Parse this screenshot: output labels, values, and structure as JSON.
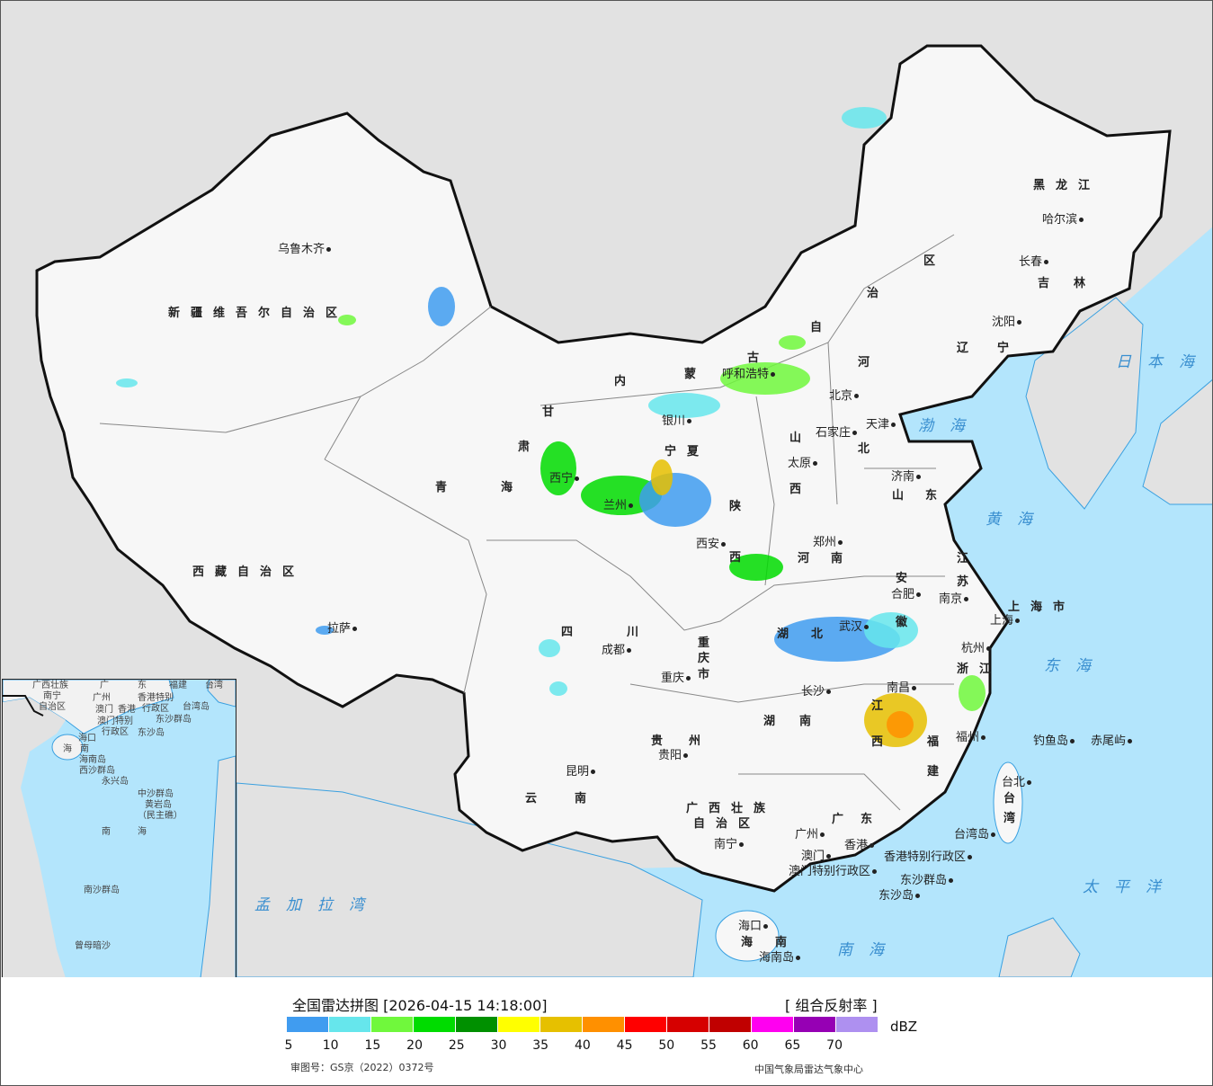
{
  "header": {
    "title": "全国雷达拼图 [2026-04-15 14:18:00]",
    "product": "[ 组合反射率 ]",
    "unit": "dBZ",
    "approval_number": "审图号：GS京（2022）0372号",
    "agency": "中国气象局雷达气象中心"
  },
  "legend": {
    "colors": [
      "#409cf0",
      "#66e6ec",
      "#70f83c",
      "#00dc00",
      "#009000",
      "#ffff00",
      "#e6c000",
      "#ff9000",
      "#ff0000",
      "#d60000",
      "#c00000",
      "#ff00f0",
      "#9600b4",
      "#ae90f0"
    ],
    "ticks": [
      "5",
      "10",
      "15",
      "20",
      "25",
      "30",
      "35",
      "40",
      "45",
      "50",
      "55",
      "60",
      "65",
      "70"
    ]
  },
  "map_colors": {
    "land_china": "#f7f7f7",
    "land_other": "#e2e2e2",
    "sea": "#b3e5fc",
    "border": "#111111"
  },
  "labels": {
    "provinces": [
      "新疆维吾尔自治区",
      "西藏自治区",
      "青",
      "海",
      "甘",
      "肃",
      "内",
      "蒙",
      "古",
      "自",
      "治",
      "区",
      "黑龙江",
      "吉",
      "林",
      "辽",
      "宁",
      "河",
      "北",
      "山",
      "西",
      "山",
      "东",
      "陕",
      "西",
      "河",
      "南",
      "江",
      "苏",
      "安",
      "徽",
      "四",
      "川",
      "重",
      "庆",
      "市",
      "湖",
      "北",
      "浙",
      "江",
      "湖",
      "南",
      "江",
      "西",
      "福",
      "建",
      "贵",
      "州",
      "云",
      "南",
      "广西壮族",
      "自治区",
      "广",
      "东",
      "台",
      "湾",
      "海",
      "南",
      "上海市",
      "宁夏"
    ],
    "cities": [
      "乌鲁木齐",
      "哈尔滨",
      "长春",
      "沈阳",
      "呼和浩特",
      "银川",
      "石家庄",
      "太原",
      "济南",
      "西宁",
      "兰州",
      "西安",
      "郑州",
      "合肥",
      "南京",
      "上海",
      "杭州",
      "武汉",
      "成都",
      "重庆",
      "长沙",
      "南昌",
      "福州",
      "贵阳",
      "昆明",
      "南宁",
      "广州",
      "澳门",
      "香港",
      "香港特别行政区",
      "澳门特别行政区",
      "东沙群岛",
      "东沙岛",
      "台北",
      "台湾岛",
      "海口",
      "海南岛",
      "拉萨",
      "钓鱼岛",
      "赤尾屿",
      "北京",
      "天津"
    ],
    "seas": [
      "日本海",
      "渤海",
      "黄海",
      "东海",
      "太平洋",
      "南海",
      "孟加拉湾"
    ],
    "inset": [
      "广西壮族",
      "自治区",
      "南宁",
      "广",
      "东",
      "福建",
      "台湾",
      "广州",
      "澳门",
      "香港",
      "香港特别",
      "行政区",
      "澳门特别",
      "行政区",
      "台湾岛",
      "东沙群岛",
      "东沙岛",
      "海口",
      "海",
      "南",
      "海南岛",
      "西沙群岛",
      "永兴岛",
      "中沙群岛",
      "黄岩岛",
      "（民主礁）",
      "南",
      "海",
      "南沙群岛",
      "曾母暗沙"
    ]
  }
}
